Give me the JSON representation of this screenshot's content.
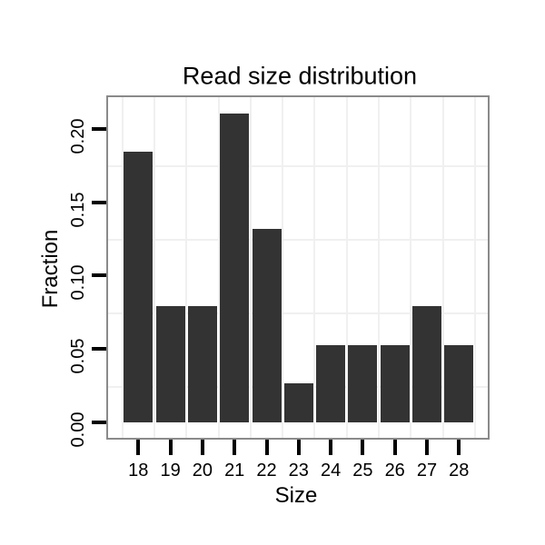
{
  "chart_data": {
    "type": "bar",
    "title": "Read size distribution",
    "xlabel": "Size",
    "ylabel": "Fraction",
    "categories": [
      "18",
      "19",
      "20",
      "21",
      "22",
      "23",
      "24",
      "25",
      "26",
      "27",
      "28"
    ],
    "values": [
      0.1842,
      0.0789,
      0.0789,
      0.2105,
      0.1316,
      0.0263,
      0.0526,
      0.0526,
      0.0526,
      0.0789,
      0.0526
    ],
    "y_tick_labels": [
      "0.00",
      "0.05",
      "0.10",
      "0.15",
      "0.20"
    ],
    "y_tick_values": [
      0,
      0.05,
      0.1,
      0.15,
      0.2
    ],
    "ylim": [
      -0.0105,
      0.221
    ],
    "y_tick_label_rotation_deg": 90,
    "grid": "minor gridlines only, between ticks and between categories",
    "legend": "none",
    "colors": {
      "bar": "#333333",
      "panel_border": "#8a8a8a",
      "grid_minor": "#f0f0f0",
      "tick": "#000000",
      "text": "#000000",
      "background": "#ffffff"
    }
  }
}
